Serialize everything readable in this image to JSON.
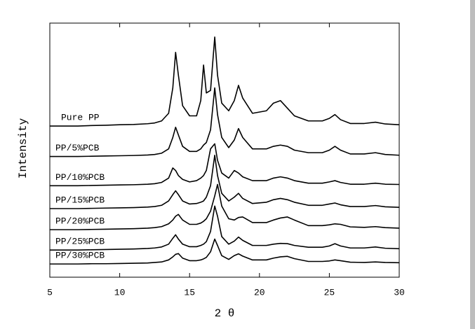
{
  "chart_data": {
    "type": "line",
    "x_label": "2 θ",
    "y_label": "Intensity",
    "x": [
      5,
      6,
      7,
      8,
      9,
      10,
      11,
      12,
      12.5,
      13,
      13.5,
      13.8,
      14.0,
      14.2,
      14.5,
      15,
      15.5,
      15.8,
      16.0,
      16.2,
      16.5,
      16.8,
      17.0,
      17.3,
      17.8,
      18.2,
      18.5,
      18.8,
      19.5,
      20.5,
      21.0,
      21.5,
      22.0,
      22.5,
      23.5,
      24.5,
      25.0,
      25.4,
      25.8,
      26.5,
      27.5,
      28.3,
      29,
      30
    ],
    "xlim": [
      5,
      30
    ],
    "xticks": [
      5,
      10,
      15,
      20,
      25,
      30
    ],
    "ylim": [
      0,
      100
    ],
    "series": [
      {
        "name": "Pure PP",
        "color": "#000000",
        "values": [
          59.5,
          59.5,
          59.5,
          59.7,
          59.8,
          60,
          60.1,
          60.4,
          60.7,
          61.5,
          64.5,
          74.5,
          88.5,
          79.5,
          67.5,
          63.5,
          63.5,
          69.5,
          83.5,
          72.5,
          73.5,
          94.5,
          79.5,
          68.5,
          65.5,
          69.5,
          75.5,
          70.5,
          64.5,
          65.5,
          68.5,
          69.5,
          66.5,
          63.5,
          61.5,
          61.5,
          62.5,
          64,
          62,
          60.5,
          60.5,
          61,
          60.3,
          60
        ]
      },
      {
        "name": "PP/5%PCB",
        "color": "#000000",
        "values": [
          47.5,
          47.5,
          47.5,
          47.6,
          47.7,
          47.8,
          47.9,
          48.1,
          48.3,
          48.8,
          50.5,
          55,
          59,
          56,
          51.5,
          49.5,
          49.5,
          50.5,
          52,
          53,
          58,
          74.5,
          64,
          55,
          51,
          54,
          58.5,
          55,
          50.5,
          50.5,
          51.5,
          52,
          51.5,
          50,
          49,
          49,
          50,
          51.5,
          50,
          48.5,
          48.5,
          49,
          48.3,
          48
        ]
      },
      {
        "name": "PP/10%PCB",
        "color": "#000000",
        "values": [
          36,
          36,
          36,
          36.1,
          36.2,
          36.3,
          36.4,
          36.6,
          36.8,
          37.3,
          39,
          43,
          42,
          40,
          38.5,
          37.5,
          38,
          39,
          40,
          42,
          50.5,
          52.5,
          46,
          41,
          39,
          42,
          41,
          39.5,
          38,
          38,
          39,
          39.5,
          39,
          38,
          37,
          37,
          37.5,
          38,
          37.3,
          36.6,
          36.6,
          37,
          36.6,
          36.5
        ]
      },
      {
        "name": "PP/15%PCB",
        "color": "#000000",
        "values": [
          27,
          27,
          27,
          27.1,
          27.2,
          27.3,
          27.4,
          27.6,
          27.8,
          28.3,
          30,
          32.5,
          34,
          32.5,
          30,
          28.8,
          29,
          29.5,
          30,
          31.5,
          36,
          48,
          40,
          33,
          30,
          31.5,
          33,
          31,
          29,
          29.5,
          30.5,
          31,
          30.5,
          29.5,
          28.3,
          28.3,
          28.8,
          29.2,
          28.5,
          27.8,
          27.8,
          28.2,
          27.7,
          27.5
        ]
      },
      {
        "name": "PP/20%PCB",
        "color": "#000000",
        "values": [
          18.7,
          18.7,
          18.7,
          18.8,
          18.9,
          19,
          19.1,
          19.3,
          19.5,
          19.9,
          21,
          22.5,
          24,
          24.7,
          22.5,
          20.8,
          20.8,
          21.3,
          22,
          23,
          26,
          32,
          36.5,
          28,
          23,
          22.5,
          23.5,
          23.7,
          21.5,
          21.5,
          22.5,
          23.3,
          23.7,
          22.5,
          20.3,
          20.3,
          20.6,
          21,
          20.8,
          19.8,
          19.6,
          19.9,
          19.5,
          19.3
        ]
      },
      {
        "name": "PP/25%PCB",
        "color": "#000000",
        "values": [
          10.7,
          10.7,
          10.7,
          10.8,
          10.9,
          11,
          11.1,
          11.3,
          11.5,
          11.9,
          13,
          15.3,
          16.7,
          15,
          13,
          12,
          12,
          12.5,
          13,
          14,
          18,
          28,
          24,
          16,
          13,
          14.2,
          15.8,
          14.5,
          12.5,
          12.5,
          13,
          13.3,
          13.2,
          12.5,
          11.8,
          11.8,
          12.3,
          13.2,
          12.3,
          11.5,
          11.5,
          11.9,
          11.4,
          11.2
        ]
      },
      {
        "name": "PP/30%PCB",
        "color": "#000000",
        "values": [
          5.2,
          5.2,
          5.2,
          5.3,
          5.3,
          5.4,
          5.5,
          5.6,
          5.8,
          6,
          6.8,
          8,
          9,
          9.3,
          7.5,
          6.5,
          6.5,
          6.8,
          7.2,
          7.8,
          10,
          15,
          12.5,
          8.5,
          7,
          8.5,
          9.2,
          8.3,
          6.8,
          6.8,
          7.5,
          8,
          8.2,
          7.3,
          6.2,
          6.2,
          6.4,
          6.8,
          6.5,
          5.9,
          5.8,
          6,
          5.8,
          5.7
        ]
      }
    ]
  }
}
